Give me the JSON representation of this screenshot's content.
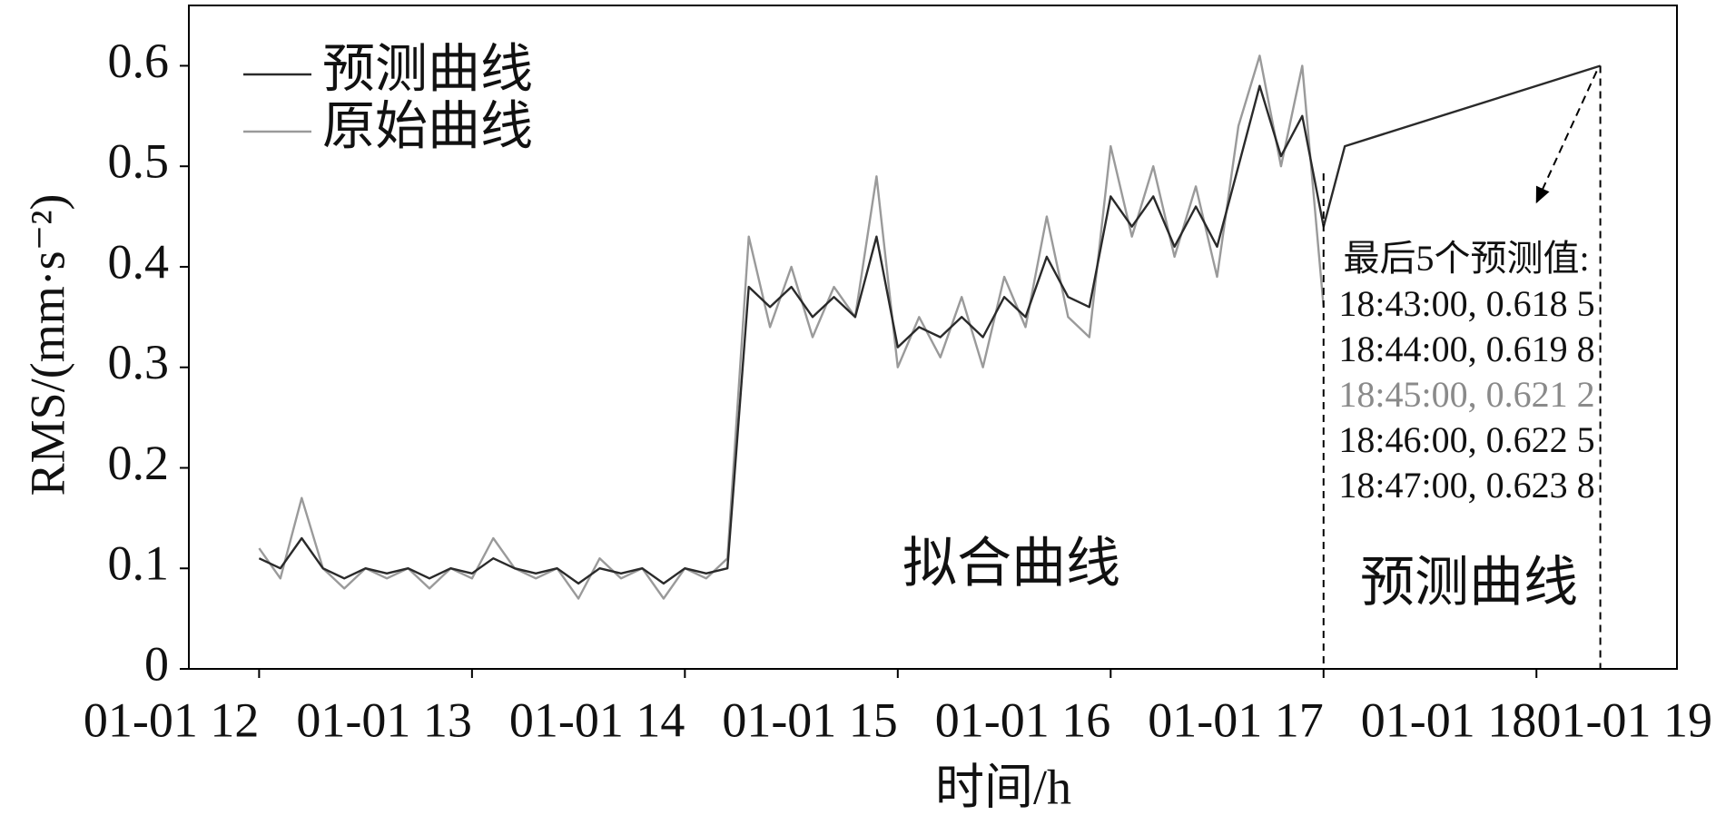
{
  "chart_data": {
    "type": "line",
    "x_label": "时间/h",
    "y_label": "RMS/(mm·s⁻²)",
    "xlim": [
      11.67,
      18.66
    ],
    "ylim": [
      0,
      0.66
    ],
    "xticks": [
      {
        "value": 12,
        "label": "01-01 12"
      },
      {
        "value": 13,
        "label": "01-01 13"
      },
      {
        "value": 14,
        "label": "01-01 14"
      },
      {
        "value": 15,
        "label": "01-01 15"
      },
      {
        "value": 16,
        "label": "01-01 16"
      },
      {
        "value": 17,
        "label": "01-01 17"
      },
      {
        "value": 18,
        "label": "01-01 18"
      },
      {
        "value": 19,
        "label": "01-01 19"
      }
    ],
    "yticks": [
      0,
      0.1,
      0.2,
      0.3,
      0.4,
      0.5,
      0.6
    ],
    "legend": "upper left",
    "series": [
      {
        "name": "预测曲线",
        "color": "#2a2a2a",
        "x": [
          12.0,
          12.1,
          12.2,
          12.3,
          12.4,
          12.5,
          12.6,
          12.7,
          12.8,
          12.9,
          13.0,
          13.1,
          13.2,
          13.3,
          13.4,
          13.5,
          13.6,
          13.7,
          13.8,
          13.9,
          14.0,
          14.1,
          14.2,
          14.3,
          14.4,
          14.5,
          14.6,
          14.7,
          14.8,
          14.9,
          15.0,
          15.1,
          15.2,
          15.3,
          15.4,
          15.5,
          15.6,
          15.7,
          15.8,
          15.9,
          16.0,
          16.1,
          16.2,
          16.3,
          16.4,
          16.5,
          16.6,
          16.7,
          16.8,
          16.9,
          17.0,
          17.1,
          18.3
        ],
        "values": [
          0.11,
          0.1,
          0.13,
          0.1,
          0.09,
          0.1,
          0.095,
          0.1,
          0.09,
          0.1,
          0.095,
          0.11,
          0.1,
          0.095,
          0.1,
          0.085,
          0.1,
          0.095,
          0.1,
          0.085,
          0.1,
          0.095,
          0.1,
          0.38,
          0.36,
          0.38,
          0.35,
          0.37,
          0.35,
          0.43,
          0.32,
          0.34,
          0.33,
          0.35,
          0.33,
          0.37,
          0.35,
          0.41,
          0.37,
          0.36,
          0.47,
          0.44,
          0.47,
          0.42,
          0.46,
          0.42,
          0.5,
          0.58,
          0.51,
          0.55,
          0.44,
          0.52,
          0.6
        ]
      },
      {
        "name": "原始曲线",
        "color": "#9a9a9a",
        "x": [
          12.0,
          12.1,
          12.2,
          12.3,
          12.4,
          12.5,
          12.6,
          12.7,
          12.8,
          12.9,
          13.0,
          13.1,
          13.2,
          13.3,
          13.4,
          13.5,
          13.6,
          13.7,
          13.8,
          13.9,
          14.0,
          14.1,
          14.2,
          14.3,
          14.4,
          14.5,
          14.6,
          14.7,
          14.8,
          14.9,
          15.0,
          15.1,
          15.2,
          15.3,
          15.4,
          15.5,
          15.6,
          15.7,
          15.8,
          15.9,
          16.0,
          16.1,
          16.2,
          16.3,
          16.4,
          16.5,
          16.6,
          16.7,
          16.8,
          16.9,
          17.0
        ],
        "values": [
          0.12,
          0.09,
          0.17,
          0.1,
          0.08,
          0.1,
          0.09,
          0.1,
          0.08,
          0.1,
          0.09,
          0.13,
          0.1,
          0.09,
          0.1,
          0.07,
          0.11,
          0.09,
          0.1,
          0.07,
          0.1,
          0.09,
          0.11,
          0.43,
          0.34,
          0.4,
          0.33,
          0.38,
          0.35,
          0.49,
          0.3,
          0.35,
          0.31,
          0.37,
          0.3,
          0.39,
          0.34,
          0.45,
          0.35,
          0.33,
          0.52,
          0.43,
          0.5,
          0.41,
          0.48,
          0.39,
          0.54,
          0.61,
          0.5,
          0.6,
          0.36
        ]
      }
    ],
    "annotations": {
      "region_labels": [
        "拟合曲线",
        "预测曲线"
      ],
      "box_title": "最后5个预测值:",
      "box_lines": [
        {
          "text": "18:43:00, 0.618 5",
          "color": "#111111"
        },
        {
          "text": "18:44:00, 0.619 8",
          "color": "#111111"
        },
        {
          "text": "18:45:00, 0.621 2",
          "color": "#8a8a8a"
        },
        {
          "text": "18:46:00, 0.622 5",
          "color": "#111111"
        },
        {
          "text": "18:47:00, 0.623 8",
          "color": "#111111"
        }
      ]
    }
  }
}
